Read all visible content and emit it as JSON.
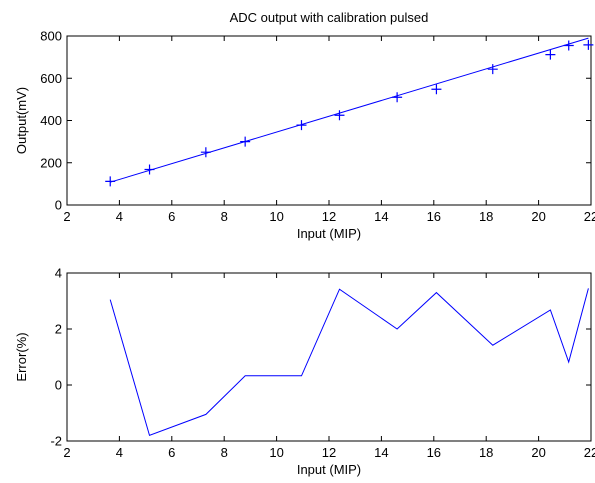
{
  "chart_data": [
    {
      "type": "scatter",
      "title": "ADC output with calibration pulsed",
      "xlabel": "Input (MIP)",
      "ylabel": "Output(mV)",
      "xlim": [
        2,
        22
      ],
      "ylim": [
        0,
        800
      ],
      "xticks": [
        2,
        4,
        6,
        8,
        10,
        12,
        14,
        16,
        18,
        20,
        22
      ],
      "yticks": [
        0,
        200,
        400,
        600,
        800
      ],
      "grid": false,
      "color": "#0000ff",
      "series": [
        {
          "marker": "plus",
          "x": [
            3.65,
            5.15,
            7.3,
            8.8,
            10.95,
            12.4,
            14.6,
            16.1,
            18.25,
            20.45,
            21.15,
            21.9
          ],
          "y": [
            112,
            168,
            250,
            300,
            378,
            425,
            510,
            548,
            643,
            712,
            755,
            758
          ]
        },
        {
          "marker": "none",
          "line": "solid",
          "x": [
            3.65,
            21.9
          ],
          "y": [
            108,
            790
          ]
        }
      ]
    },
    {
      "type": "line",
      "title": "",
      "xlabel": "Input (MIP)",
      "ylabel": "Error(%)",
      "xlim": [
        2,
        22
      ],
      "ylim": [
        -2,
        4
      ],
      "xticks": [
        2,
        4,
        6,
        8,
        10,
        12,
        14,
        16,
        18,
        20,
        22
      ],
      "yticks": [
        -2,
        0,
        2,
        4
      ],
      "grid": false,
      "color": "#0000ff",
      "series": [
        {
          "x": [
            3.65,
            5.15,
            7.3,
            8.8,
            10.95,
            12.4,
            14.6,
            16.1,
            18.25,
            20.45,
            21.15,
            21.9
          ],
          "y": [
            3.05,
            -1.8,
            -1.05,
            0.33,
            0.33,
            3.42,
            2.0,
            3.3,
            1.42,
            2.68,
            0.82,
            3.45
          ]
        }
      ]
    }
  ]
}
